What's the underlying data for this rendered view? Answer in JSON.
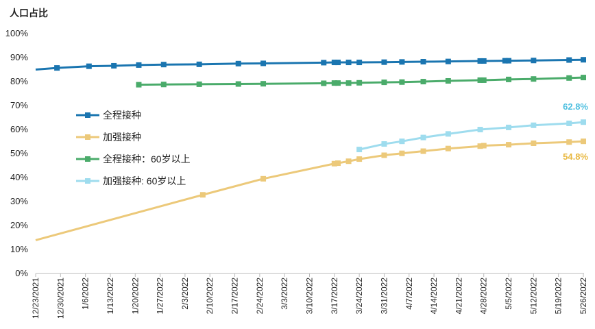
{
  "chart_data": {
    "type": "line",
    "ylabel": "人口占比",
    "ylim": [
      0,
      100
    ],
    "y_ticks": [
      "0%",
      "10%",
      "20%",
      "30%",
      "40%",
      "50%",
      "60%",
      "70%",
      "80%",
      "90%",
      "100%"
    ],
    "x_unit": "days since 12/23/2021",
    "xlim": [
      0,
      154
    ],
    "x_ticks": [
      "12/23/2021",
      "12/30/2021",
      "1/6/2022",
      "1/13/2022",
      "1/20/2022",
      "1/27/2022",
      "2/3/2022",
      "2/10/2022",
      "2/17/2022",
      "2/24/2022",
      "3/3/2022",
      "3/10/2022",
      "3/17/2022",
      "3/24/2022",
      "3/31/2022",
      "4/7/2022",
      "4/14/2022",
      "4/21/2022",
      "4/28/2022",
      "5/5/2022",
      "5/12/2022",
      "5/19/2022",
      "5/26/2022"
    ],
    "legend_position": "left-middle",
    "series": [
      {
        "name": "全程接种",
        "color": "#1a75b0",
        "points": [
          [
            0,
            84.7
          ],
          [
            6,
            85.4
          ],
          [
            15,
            86.1
          ],
          [
            22,
            86.3
          ],
          [
            29,
            86.6
          ],
          [
            36,
            86.8
          ],
          [
            46,
            86.9
          ],
          [
            57,
            87.2
          ],
          [
            64,
            87.3
          ],
          [
            81,
            87.6
          ],
          [
            84,
            87.7
          ],
          [
            85,
            87.7
          ],
          [
            88,
            87.7
          ],
          [
            91,
            87.7
          ],
          [
            98,
            87.8
          ],
          [
            103,
            87.9
          ],
          [
            109,
            88.0
          ],
          [
            116,
            88.1
          ],
          [
            125,
            88.3
          ],
          [
            126,
            88.3
          ],
          [
            132,
            88.4
          ],
          [
            133,
            88.4
          ],
          [
            140,
            88.5
          ],
          [
            150,
            88.7
          ],
          [
            154,
            88.8
          ]
        ]
      },
      {
        "name": "加强接种",
        "color": "#ecc97a",
        "points": [
          [
            0,
            13.6
          ],
          [
            47,
            32.5
          ],
          [
            64,
            39.2
          ],
          [
            84,
            45.5
          ],
          [
            85,
            45.7
          ],
          [
            88,
            46.5
          ],
          [
            91,
            47.4
          ],
          [
            98,
            49.0
          ],
          [
            103,
            49.8
          ],
          [
            109,
            50.7
          ],
          [
            116,
            51.8
          ],
          [
            125,
            52.8
          ],
          [
            126,
            53.0
          ],
          [
            133,
            53.4
          ],
          [
            140,
            54.0
          ],
          [
            150,
            54.5
          ],
          [
            154,
            54.8
          ]
        ],
        "end_label": "54.8%",
        "label_color": "#e8b840"
      },
      {
        "name": "全程接种：60岁以上",
        "color": "#4aab6a",
        "points": [
          [
            29,
            78.4
          ],
          [
            36,
            78.5
          ],
          [
            46,
            78.6
          ],
          [
            57,
            78.7
          ],
          [
            64,
            78.8
          ],
          [
            81,
            79.0
          ],
          [
            84,
            79.1
          ],
          [
            85,
            79.1
          ],
          [
            88,
            79.1
          ],
          [
            91,
            79.2
          ],
          [
            98,
            79.4
          ],
          [
            103,
            79.5
          ],
          [
            109,
            79.7
          ],
          [
            116,
            80.0
          ],
          [
            125,
            80.3
          ],
          [
            126,
            80.3
          ],
          [
            133,
            80.6
          ],
          [
            140,
            80.8
          ],
          [
            150,
            81.2
          ],
          [
            154,
            81.4
          ]
        ]
      },
      {
        "name": "加强接种: 60岁以上",
        "color": "#9edcee",
        "points": [
          [
            91,
            51.4
          ],
          [
            98,
            53.7
          ],
          [
            103,
            54.8
          ],
          [
            109,
            56.4
          ],
          [
            116,
            57.9
          ],
          [
            125,
            59.7
          ],
          [
            133,
            60.6
          ],
          [
            140,
            61.5
          ],
          [
            150,
            62.3
          ],
          [
            154,
            62.8
          ]
        ],
        "end_label": "62.8%",
        "label_color": "#4fc0e0"
      }
    ]
  }
}
